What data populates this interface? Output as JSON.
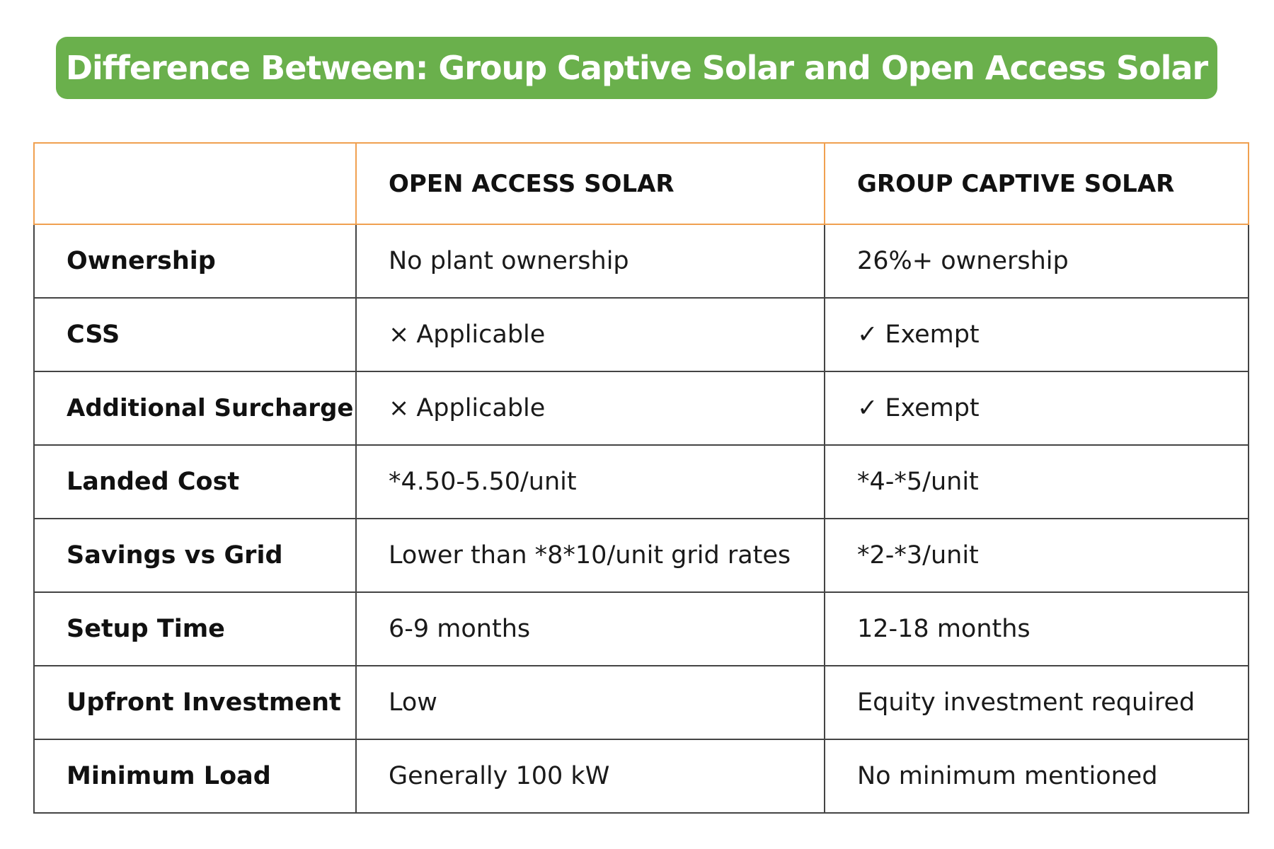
{
  "title": "Difference Between: Group Captive Solar and Open Access Solar",
  "table": {
    "headers": [
      "",
      "OPEN ACCESS SOLAR",
      "GROUP CAPTIVE SOLAR"
    ],
    "rows": [
      {
        "label": "Ownership",
        "open_access": "No plant ownership",
        "group_captive": "26%+ ownership"
      },
      {
        "label": "CSS",
        "open_access_mark": "×",
        "open_access": "Applicable",
        "group_captive_mark": "✓",
        "group_captive": "Exempt"
      },
      {
        "label": "Additional Surcharge",
        "open_access_mark": "×",
        "open_access": "Applicable",
        "group_captive_mark": "✓",
        "group_captive": "Exempt"
      },
      {
        "label": "Landed Cost",
        "open_access": "*4.50-5.50/unit",
        "group_captive": "*4-*5/unit"
      },
      {
        "label": "Savings vs Grid",
        "open_access": "Lower than *8*10/unit grid rates",
        "group_captive": "*2-*3/unit"
      },
      {
        "label": "Setup Time",
        "open_access": "6-9 months",
        "group_captive": "12-18 months"
      },
      {
        "label": "Upfront Investment",
        "open_access": "Low",
        "group_captive": "Equity investment required"
      },
      {
        "label": "Minimum Load",
        "open_access": "Generally 100 kW",
        "group_captive": "No minimum mentioned"
      }
    ]
  },
  "colors": {
    "banner": "#6ab04c",
    "header_border": "#f0a050",
    "body_border": "#444444"
  }
}
